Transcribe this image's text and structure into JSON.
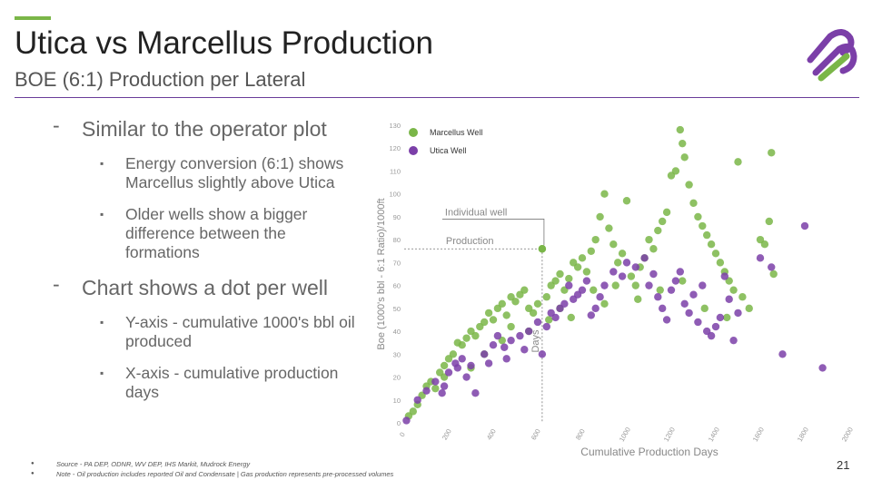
{
  "slide": {
    "title": "Utica vs Marcellus Production",
    "subtitle": "BOE (6:1) Production per Lateral",
    "page_number": "21",
    "accent_color": "#7ab648",
    "rule_color": "#6a3d9a"
  },
  "bullets": [
    {
      "level": 1,
      "marker": "-",
      "text": "Similar to the operator plot"
    },
    {
      "level": 2,
      "marker": "▪",
      "text": "Energy conversion (6:1) shows Marcellus slightly above Utica"
    },
    {
      "level": 2,
      "marker": "▪",
      "text": "Older wells show a bigger difference between the formations"
    },
    {
      "level": 1,
      "marker": "-",
      "text": "Chart shows a dot per well"
    },
    {
      "level": 2,
      "marker": "▪",
      "text": "Y-axis - cumulative 1000's bbl oil produced"
    },
    {
      "level": 2,
      "marker": "▪",
      "text": "X-axis - cumulative production days"
    }
  ],
  "footnotes": [
    "Source - PA DEP, ODNR, WV DEP, IHS Markit, Mudrock Energy",
    "Note - Oil production includes reported Oil and Condensate | Gas production represents pre-processed volumes"
  ],
  "chart_data": {
    "type": "scatter",
    "xlabel": "Cumulative Production Days",
    "ylabel": "Boe (1000's bbl - 6:1 Ratio)/1000ft",
    "xlim": [
      0,
      2000
    ],
    "ylim": [
      0,
      130
    ],
    "xticks": [
      0,
      200,
      400,
      600,
      800,
      1000,
      1200,
      1400,
      1600,
      1800,
      2000
    ],
    "yticks": [
      0,
      10,
      20,
      30,
      40,
      50,
      60,
      70,
      80,
      90,
      100,
      110,
      120,
      130
    ],
    "grid": false,
    "legend": "top-left",
    "annotations": {
      "individual_well": {
        "label": "Individual well",
        "x": 620,
        "y": 76
      },
      "production_label": "Production",
      "days_label": "Days"
    },
    "series": [
      {
        "name": "Marcellus Well",
        "color": "#7ab648",
        "points": [
          [
            20,
            3
          ],
          [
            40,
            5
          ],
          [
            60,
            8
          ],
          [
            80,
            12
          ],
          [
            100,
            16
          ],
          [
            120,
            18
          ],
          [
            140,
            15
          ],
          [
            160,
            22
          ],
          [
            180,
            20
          ],
          [
            200,
            28
          ],
          [
            180,
            25
          ],
          [
            220,
            30
          ],
          [
            240,
            35
          ],
          [
            260,
            34
          ],
          [
            280,
            37
          ],
          [
            300,
            40
          ],
          [
            320,
            38
          ],
          [
            340,
            42
          ],
          [
            360,
            44
          ],
          [
            380,
            48
          ],
          [
            400,
            45
          ],
          [
            420,
            50
          ],
          [
            440,
            52
          ],
          [
            460,
            47
          ],
          [
            480,
            55
          ],
          [
            500,
            53
          ],
          [
            520,
            56
          ],
          [
            540,
            58
          ],
          [
            560,
            50
          ],
          [
            580,
            48
          ],
          [
            600,
            52
          ],
          [
            620,
            76
          ],
          [
            640,
            55
          ],
          [
            660,
            60
          ],
          [
            680,
            62
          ],
          [
            700,
            65
          ],
          [
            720,
            58
          ],
          [
            740,
            63
          ],
          [
            760,
            70
          ],
          [
            780,
            68
          ],
          [
            800,
            72
          ],
          [
            820,
            66
          ],
          [
            840,
            75
          ],
          [
            860,
            80
          ],
          [
            880,
            90
          ],
          [
            900,
            100
          ],
          [
            920,
            85
          ],
          [
            940,
            78
          ],
          [
            960,
            70
          ],
          [
            980,
            74
          ],
          [
            1000,
            97
          ],
          [
            1020,
            64
          ],
          [
            1040,
            60
          ],
          [
            1060,
            68
          ],
          [
            1080,
            72
          ],
          [
            1100,
            80
          ],
          [
            1120,
            76
          ],
          [
            1140,
            84
          ],
          [
            1160,
            88
          ],
          [
            1180,
            92
          ],
          [
            1200,
            108
          ],
          [
            1220,
            110
          ],
          [
            1240,
            128
          ],
          [
            1250,
            122
          ],
          [
            1260,
            116
          ],
          [
            1280,
            104
          ],
          [
            1300,
            96
          ],
          [
            1320,
            90
          ],
          [
            1340,
            86
          ],
          [
            1360,
            82
          ],
          [
            1380,
            78
          ],
          [
            1400,
            74
          ],
          [
            1420,
            70
          ],
          [
            1440,
            66
          ],
          [
            1460,
            62
          ],
          [
            1480,
            58
          ],
          [
            1500,
            114
          ],
          [
            1520,
            55
          ],
          [
            1550,
            50
          ],
          [
            1600,
            80
          ],
          [
            1620,
            78
          ],
          [
            1640,
            88
          ],
          [
            1650,
            118
          ],
          [
            1660,
            65
          ],
          [
            650,
            45
          ],
          [
            700,
            50
          ],
          [
            750,
            46
          ],
          [
            850,
            58
          ],
          [
            900,
            52
          ],
          [
            950,
            60
          ],
          [
            1050,
            54
          ],
          [
            1150,
            58
          ],
          [
            1250,
            62
          ],
          [
            1350,
            50
          ],
          [
            1450,
            46
          ],
          [
            560,
            40
          ],
          [
            480,
            42
          ],
          [
            440,
            36
          ],
          [
            360,
            30
          ],
          [
            300,
            24
          ]
        ]
      },
      {
        "name": "Utica Well",
        "color": "#7b3fa8",
        "points": [
          [
            10,
            1
          ],
          [
            60,
            10
          ],
          [
            100,
            14
          ],
          [
            140,
            18
          ],
          [
            170,
            13
          ],
          [
            200,
            22
          ],
          [
            230,
            26
          ],
          [
            260,
            28
          ],
          [
            300,
            25
          ],
          [
            320,
            13
          ],
          [
            360,
            30
          ],
          [
            400,
            34
          ],
          [
            420,
            38
          ],
          [
            450,
            33
          ],
          [
            480,
            36
          ],
          [
            520,
            38
          ],
          [
            560,
            40
          ],
          [
            600,
            44
          ],
          [
            640,
            42
          ],
          [
            660,
            48
          ],
          [
            680,
            46
          ],
          [
            700,
            50
          ],
          [
            720,
            52
          ],
          [
            740,
            60
          ],
          [
            760,
            54
          ],
          [
            780,
            56
          ],
          [
            800,
            58
          ],
          [
            820,
            62
          ],
          [
            840,
            47
          ],
          [
            860,
            50
          ],
          [
            880,
            55
          ],
          [
            900,
            60
          ],
          [
            940,
            66
          ],
          [
            980,
            64
          ],
          [
            1000,
            70
          ],
          [
            1040,
            68
          ],
          [
            1080,
            72
          ],
          [
            1100,
            60
          ],
          [
            1120,
            65
          ],
          [
            1140,
            55
          ],
          [
            1160,
            50
          ],
          [
            1180,
            45
          ],
          [
            1200,
            58
          ],
          [
            1220,
            62
          ],
          [
            1240,
            66
          ],
          [
            1260,
            52
          ],
          [
            1280,
            48
          ],
          [
            1300,
            56
          ],
          [
            1320,
            44
          ],
          [
            1340,
            60
          ],
          [
            1360,
            40
          ],
          [
            1380,
            38
          ],
          [
            1400,
            42
          ],
          [
            1420,
            46
          ],
          [
            1440,
            64
          ],
          [
            1460,
            54
          ],
          [
            1480,
            36
          ],
          [
            1500,
            48
          ],
          [
            1600,
            72
          ],
          [
            1650,
            68
          ],
          [
            1700,
            30
          ],
          [
            1800,
            86
          ],
          [
            1880,
            24
          ],
          [
            620,
            30
          ],
          [
            540,
            32
          ],
          [
            460,
            28
          ],
          [
            380,
            26
          ],
          [
            280,
            20
          ],
          [
            240,
            24
          ],
          [
            180,
            16
          ]
        ]
      }
    ]
  }
}
